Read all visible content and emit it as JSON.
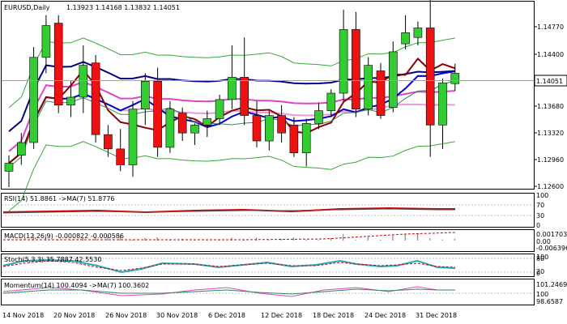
{
  "window": {
    "symbol_period": "EURUSD,Daily",
    "ohlc": "1.13923 1.14168 1.13832 1.14051"
  },
  "price_axis": {
    "ticks": [
      "1.14770",
      "1.14400",
      "1.13680",
      "1.13320",
      "1.12960",
      "1.12600"
    ],
    "current_price": "1.14051"
  },
  "date_axis": [
    "14 Nov 2018",
    "20 Nov 2018",
    "26 Nov 2018",
    "30 Nov 2018",
    "6 Dec 2018",
    "12 Dec 2018",
    "18 Dec 2018",
    "24 Dec 2018",
    "31 Dec 2018"
  ],
  "indicators": {
    "rsi": {
      "label": "RSI(14) 51.8861 ->MA(7) 51.8776",
      "axis": [
        "100",
        "70",
        "30",
        "0"
      ]
    },
    "macd": {
      "label": "MACD(12,26,9) -0.000822 -0.000586",
      "axis": [
        "0.001703",
        "0.00",
        "-0.006396"
      ]
    },
    "stoch": {
      "label": "Stoch(5,3,3) 35.7887 42.5530",
      "axis": [
        "100",
        "80",
        "20",
        "0"
      ]
    },
    "momentum": {
      "label": "Momentum(14) 100.4094 ->MA(7) 100.3602",
      "axis": [
        "101.2469",
        "100",
        "98.6587"
      ]
    }
  },
  "colors": {
    "bull": "#33cc33",
    "bear": "#ee1111",
    "ma_fast": "#8b0000",
    "ma_mid": "#0000cc",
    "ma_slow": "#000080",
    "ma_pink": "#dd44cc",
    "bands": "#33aa33"
  },
  "chart_data": {
    "type": "candlestick",
    "candles": [
      {
        "o": 1.1282,
        "h": 1.1302,
        "l": 1.1262,
        "c": 1.1292
      },
      {
        "o": 1.1302,
        "h": 1.133,
        "l": 1.129,
        "c": 1.1318
      },
      {
        "o": 1.1318,
        "h": 1.1438,
        "l": 1.131,
        "c": 1.1425
      },
      {
        "o": 1.1425,
        "h": 1.1478,
        "l": 1.1405,
        "c": 1.1465
      },
      {
        "o": 1.1468,
        "h": 1.1478,
        "l": 1.1355,
        "c": 1.1365
      },
      {
        "o": 1.1365,
        "h": 1.1395,
        "l": 1.135,
        "c": 1.1375
      },
      {
        "o": 1.1375,
        "h": 1.144,
        "l": 1.1355,
        "c": 1.1415
      },
      {
        "o": 1.1418,
        "h": 1.1428,
        "l": 1.1318,
        "c": 1.1328
      },
      {
        "o": 1.1328,
        "h": 1.134,
        "l": 1.13,
        "c": 1.131
      },
      {
        "o": 1.131,
        "h": 1.1335,
        "l": 1.1282,
        "c": 1.129
      },
      {
        "o": 1.129,
        "h": 1.137,
        "l": 1.1275,
        "c": 1.136
      },
      {
        "o": 1.136,
        "h": 1.1405,
        "l": 1.134,
        "c": 1.1395
      },
      {
        "o": 1.1395,
        "h": 1.1412,
        "l": 1.13,
        "c": 1.1312
      },
      {
        "o": 1.1312,
        "h": 1.137,
        "l": 1.1305,
        "c": 1.136
      },
      {
        "o": 1.1355,
        "h": 1.1362,
        "l": 1.132,
        "c": 1.133
      },
      {
        "o": 1.133,
        "h": 1.1342,
        "l": 1.1315,
        "c": 1.134
      },
      {
        "o": 1.134,
        "h": 1.1358,
        "l": 1.1325,
        "c": 1.1348
      },
      {
        "o": 1.1348,
        "h": 1.1378,
        "l": 1.134,
        "c": 1.1372
      },
      {
        "o": 1.1372,
        "h": 1.144,
        "l": 1.136,
        "c": 1.14
      },
      {
        "o": 1.14,
        "h": 1.145,
        "l": 1.134,
        "c": 1.1352
      },
      {
        "o": 1.1352,
        "h": 1.137,
        "l": 1.1312,
        "c": 1.132
      },
      {
        "o": 1.132,
        "h": 1.1358,
        "l": 1.1308,
        "c": 1.1352
      },
      {
        "o": 1.1352,
        "h": 1.1365,
        "l": 1.1318,
        "c": 1.133
      },
      {
        "o": 1.134,
        "h": 1.135,
        "l": 1.13,
        "c": 1.1305
      },
      {
        "o": 1.1305,
        "h": 1.1348,
        "l": 1.1288,
        "c": 1.1342
      },
      {
        "o": 1.1342,
        "h": 1.1368,
        "l": 1.1335,
        "c": 1.1358
      },
      {
        "o": 1.1358,
        "h": 1.1385,
        "l": 1.135,
        "c": 1.138
      },
      {
        "o": 1.138,
        "h": 1.1485,
        "l": 1.137,
        "c": 1.146
      },
      {
        "o": 1.146,
        "h": 1.1482,
        "l": 1.135,
        "c": 1.136
      },
      {
        "o": 1.136,
        "h": 1.1425,
        "l": 1.1352,
        "c": 1.1415
      },
      {
        "o": 1.1408,
        "h": 1.1418,
        "l": 1.1348,
        "c": 1.1352
      },
      {
        "o": 1.1362,
        "h": 1.1445,
        "l": 1.1356,
        "c": 1.1432
      },
      {
        "o": 1.1442,
        "h": 1.1478,
        "l": 1.1435,
        "c": 1.1456
      },
      {
        "o": 1.145,
        "h": 1.147,
        "l": 1.144,
        "c": 1.1462
      },
      {
        "o": 1.1462,
        "h": 1.15,
        "l": 1.13,
        "c": 1.134
      },
      {
        "o": 1.134,
        "h": 1.1398,
        "l": 1.131,
        "c": 1.1393
      },
      {
        "o": 1.1392,
        "h": 1.1417,
        "l": 1.1383,
        "c": 1.1405
      }
    ],
    "y_range": [
      1.126,
      1.1495
    ]
  }
}
